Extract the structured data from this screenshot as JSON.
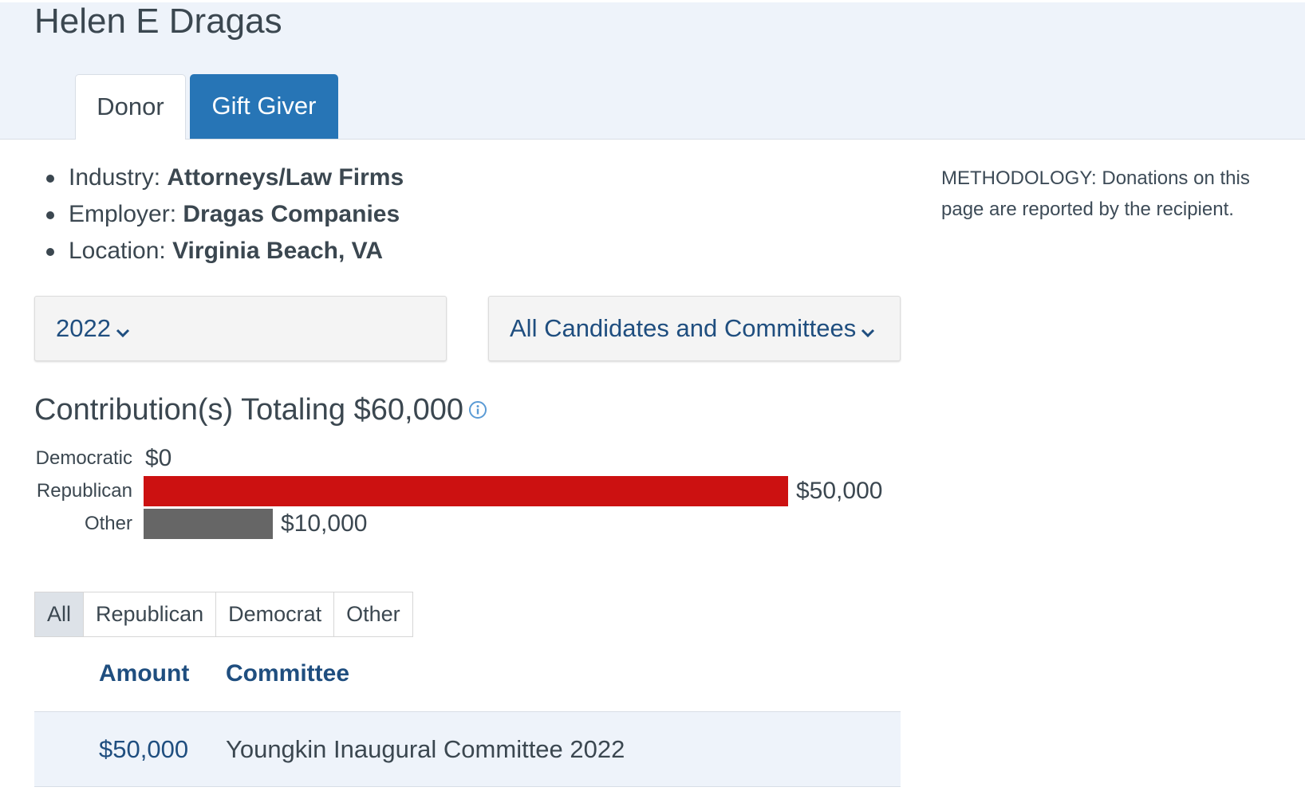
{
  "profile": {
    "name": "Helen E Dragas",
    "tabs": [
      {
        "label": "Donor",
        "active": true
      },
      {
        "label": "Gift Giver",
        "active": false
      }
    ],
    "details": [
      {
        "label": "Industry: ",
        "value": "Attorneys/Law Firms"
      },
      {
        "label": "Employer: ",
        "value": "Dragas Companies"
      },
      {
        "label": "Location: ",
        "value": "Virginia Beach, VA"
      }
    ]
  },
  "methodology": "METHODOLOGY: Donations on this page are reported by the recipient.",
  "filters_select": {
    "year": "2022",
    "candidates": "All Candidates and Committees"
  },
  "summary": {
    "total_text": "Contribution(s) Totaling $60,000"
  },
  "chart_data": {
    "type": "bar",
    "orientation": "horizontal",
    "categories": [
      "Democratic",
      "Republican",
      "Other"
    ],
    "values": [
      0,
      50000,
      10000
    ],
    "value_labels": [
      "$0",
      "$50,000",
      "$10,000"
    ],
    "colors": [
      "#2b5ea7",
      "#cc1111",
      "#666666"
    ],
    "title": "",
    "xlabel": "",
    "ylabel": ""
  },
  "party_filters": [
    {
      "label": "All",
      "active": true
    },
    {
      "label": "Republican",
      "active": false
    },
    {
      "label": "Democrat",
      "active": false
    },
    {
      "label": "Other",
      "active": false
    }
  ],
  "table": {
    "headers": [
      "Amount",
      "Committee"
    ],
    "rows": [
      {
        "amount": "$50,000",
        "committee": "Youngkin Inaugural Committee 2022"
      }
    ]
  },
  "colors": {
    "accent": "#2775b6",
    "link": "#1f4e7f",
    "header_band": "#eef3fa"
  }
}
